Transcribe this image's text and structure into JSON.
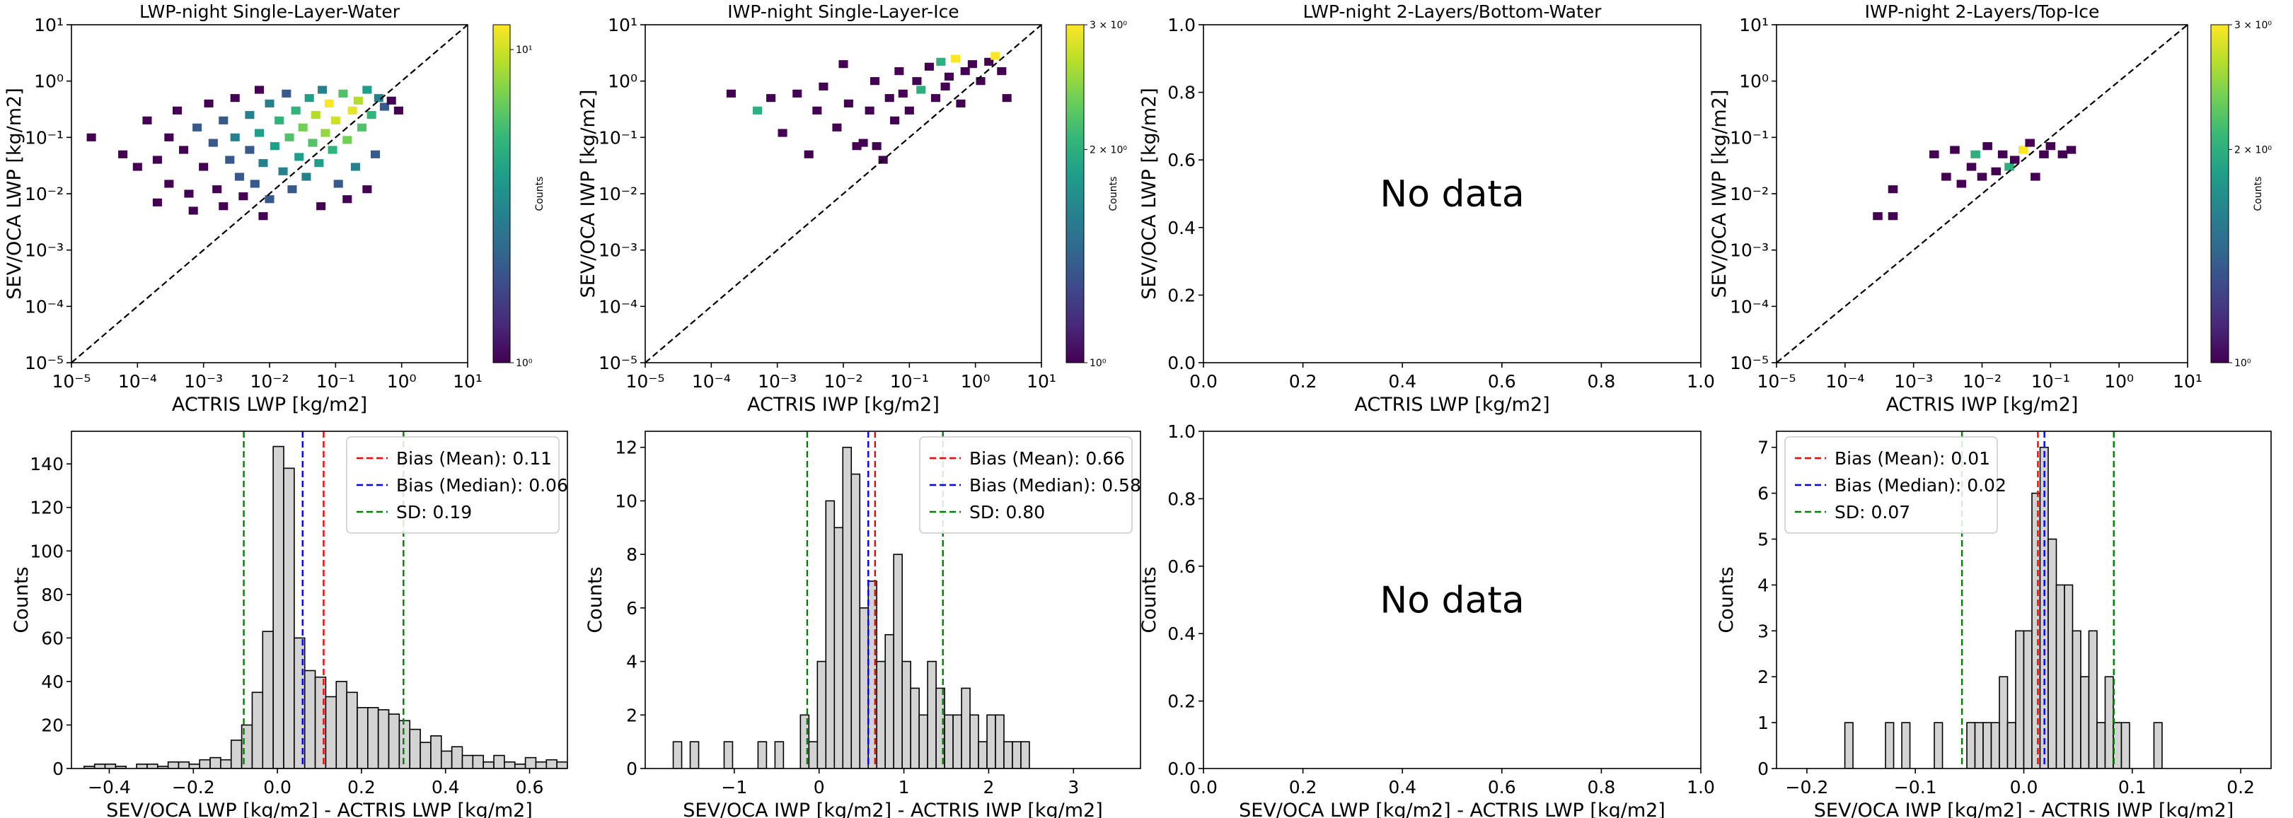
{
  "chart_data": [
    {
      "type": "hist2d",
      "title": "LWP-night Single-Layer-Water",
      "xlabel": "ACTRIS LWP [kg/m2]",
      "ylabel": "SEV/OCA LWP [kg/m2]",
      "xscale": "log",
      "yscale": "log",
      "xlim": [
        1e-05,
        10
      ],
      "ylim": [
        1e-05,
        10
      ],
      "xticks": [
        {
          "value": 1e-05,
          "label": "10⁻⁵"
        },
        {
          "value": 0.0001,
          "label": "10⁻⁴"
        },
        {
          "value": 0.001,
          "label": "10⁻³"
        },
        {
          "value": 0.01,
          "label": "10⁻²"
        },
        {
          "value": 0.1,
          "label": "10⁻¹"
        },
        {
          "value": 1,
          "label": "10⁰"
        },
        {
          "value": 10,
          "label": "10¹"
        }
      ],
      "yticks": [
        {
          "value": 1e-05,
          "label": "10⁻⁵"
        },
        {
          "value": 0.0001,
          "label": "10⁻⁴"
        },
        {
          "value": 0.001,
          "label": "10⁻³"
        },
        {
          "value": 0.01,
          "label": "10⁻²"
        },
        {
          "value": 0.1,
          "label": "10⁻¹"
        },
        {
          "value": 1,
          "label": "10⁰"
        },
        {
          "value": 10,
          "label": "10¹"
        }
      ],
      "identity_line": true,
      "colormap": "viridis",
      "clabel": "Counts",
      "clim": [
        1,
        12
      ],
      "cticks": [
        {
          "value": 1,
          "label": "10⁰"
        },
        {
          "value": 10,
          "label": "10¹"
        }
      ],
      "x": [
        2e-05,
        6e-05,
        0.0001,
        0.00014,
        0.0002,
        0.0002,
        0.0003,
        0.0003,
        0.0004,
        0.0005,
        0.0006,
        0.0007,
        0.0008,
        0.001,
        0.0012,
        0.0014,
        0.0016,
        0.002,
        0.002,
        0.0025,
        0.003,
        0.003,
        0.0035,
        0.004,
        0.005,
        0.005,
        0.006,
        0.007,
        0.007,
        0.008,
        0.01,
        0.01,
        0.012,
        0.014,
        0.016,
        0.018,
        0.02,
        0.022,
        0.025,
        0.028,
        0.032,
        0.036,
        0.04,
        0.045,
        0.05,
        0.056,
        0.063,
        0.07,
        0.08,
        0.09,
        0.1,
        0.11,
        0.13,
        0.15,
        0.18,
        0.2,
        0.22,
        0.25,
        0.3,
        0.35,
        0.4,
        0.45,
        0.55,
        0.7,
        0.9,
        0.3,
        0.06,
        0.008,
        0.15
      ],
      "y": [
        0.1,
        0.05,
        0.03,
        0.2,
        0.007,
        0.04,
        0.1,
        0.015,
        0.3,
        0.06,
        0.01,
        0.005,
        0.15,
        0.03,
        0.4,
        0.08,
        0.012,
        0.2,
        0.006,
        0.04,
        0.5,
        0.1,
        0.02,
        0.009,
        0.25,
        0.06,
        0.015,
        0.7,
        0.12,
        0.035,
        0.4,
        0.008,
        0.07,
        0.2,
        0.025,
        0.6,
        0.1,
        0.012,
        0.3,
        0.045,
        0.15,
        0.02,
        0.5,
        0.08,
        0.25,
        0.035,
        0.7,
        0.12,
        0.4,
        0.06,
        0.2,
        0.015,
        0.6,
        0.09,
        0.3,
        0.03,
        0.45,
        0.15,
        0.7,
        0.25,
        0.05,
        0.5,
        0.35,
        0.45,
        0.3,
        0.012,
        0.006,
        0.004,
        0.008
      ],
      "values": [
        1,
        1,
        1,
        1,
        1,
        1,
        1,
        1,
        1,
        1,
        1,
        1,
        2,
        1,
        1,
        2,
        1,
        2,
        1,
        2,
        1,
        3,
        2,
        1,
        3,
        2,
        2,
        1,
        4,
        3,
        3,
        2,
        4,
        5,
        3,
        2,
        6,
        2,
        5,
        4,
        7,
        3,
        4,
        6,
        9,
        4,
        3,
        8,
        12,
        5,
        10,
        2,
        6,
        7,
        11,
        3,
        9,
        6,
        4,
        5,
        2,
        3,
        2,
        1,
        1,
        1,
        1,
        1,
        1
      ]
    },
    {
      "type": "hist2d",
      "title": "IWP-night Single-Layer-Ice",
      "xlabel": "ACTRIS IWP [kg/m2]",
      "ylabel": "SEV/OCA IWP [kg/m2]",
      "xscale": "log",
      "yscale": "log",
      "xlim": [
        1e-05,
        10
      ],
      "ylim": [
        1e-05,
        10
      ],
      "xticks": [
        {
          "value": 1e-05,
          "label": "10⁻⁵"
        },
        {
          "value": 0.0001,
          "label": "10⁻⁴"
        },
        {
          "value": 0.001,
          "label": "10⁻³"
        },
        {
          "value": 0.01,
          "label": "10⁻²"
        },
        {
          "value": 0.1,
          "label": "10⁻¹"
        },
        {
          "value": 1,
          "label": "10⁰"
        },
        {
          "value": 10,
          "label": "10¹"
        }
      ],
      "yticks": [
        {
          "value": 1e-05,
          "label": "10⁻⁵"
        },
        {
          "value": 0.0001,
          "label": "10⁻⁴"
        },
        {
          "value": 0.001,
          "label": "10⁻³"
        },
        {
          "value": 0.01,
          "label": "10⁻²"
        },
        {
          "value": 0.1,
          "label": "10⁻¹"
        },
        {
          "value": 1,
          "label": "10⁰"
        },
        {
          "value": 10,
          "label": "10¹"
        }
      ],
      "identity_line": true,
      "colormap": "viridis",
      "clabel": "Counts",
      "clim": [
        1,
        3
      ],
      "cticks": [
        {
          "value": 1,
          "label": "10⁰"
        },
        {
          "value": 2,
          "label": "2 × 10⁰"
        },
        {
          "value": 3,
          "label": "3 × 10⁰"
        }
      ],
      "x": [
        0.0002,
        0.0005,
        0.0008,
        0.0012,
        0.002,
        0.003,
        0.004,
        0.005,
        0.008,
        0.01,
        0.012,
        0.016,
        0.02,
        0.025,
        0.03,
        0.032,
        0.04,
        0.05,
        0.06,
        0.07,
        0.08,
        0.1,
        0.13,
        0.15,
        0.2,
        0.25,
        0.3,
        0.35,
        0.4,
        0.5,
        0.6,
        0.7,
        0.9,
        1.2,
        1.6,
        2,
        2.5,
        3
      ],
      "y": [
        0.6,
        0.3,
        0.5,
        0.12,
        0.6,
        0.05,
        0.3,
        0.8,
        0.15,
        2,
        0.4,
        0.07,
        0.08,
        0.3,
        1,
        0.07,
        0.04,
        0.5,
        0.2,
        1.5,
        0.6,
        0.3,
        1,
        0.7,
        1.8,
        0.5,
        2.2,
        0.8,
        1.2,
        2.5,
        0.4,
        1.5,
        2,
        1,
        2.2,
        2.8,
        1.5,
        0.5
      ],
      "values": [
        1,
        2,
        1,
        1,
        1,
        1,
        1,
        1,
        1,
        1,
        1,
        1,
        1,
        1,
        1,
        1,
        1,
        1,
        1,
        1,
        1,
        1,
        1,
        2,
        1,
        1,
        2,
        1,
        1,
        3,
        1,
        1,
        1,
        1,
        1,
        3,
        1,
        1
      ]
    },
    {
      "type": "empty",
      "title": "LWP-night 2-Layers/Bottom-Water",
      "xlabel": "ACTRIS LWP [kg/m2]",
      "ylabel": "SEV/OCA LWP [kg/m2]",
      "annotation": "No data",
      "xlim": [
        0,
        1
      ],
      "ylim": [
        0,
        1
      ],
      "xticks": [
        {
          "value": 0,
          "label": "0.0"
        },
        0.2,
        0.4,
        0.6,
        0.8,
        {
          "value": 1,
          "label": "1.0"
        }
      ],
      "yticks": [
        {
          "value": 0,
          "label": "0.0"
        },
        0.2,
        0.4,
        0.6,
        0.8,
        {
          "value": 1,
          "label": "1.0"
        }
      ]
    },
    {
      "type": "hist2d",
      "title": "IWP-night 2-Layers/Top-Ice",
      "xlabel": "ACTRIS IWP [kg/m2]",
      "ylabel": "SEV/OCA IWP [kg/m2]",
      "xscale": "log",
      "yscale": "log",
      "xlim": [
        1e-05,
        10
      ],
      "ylim": [
        1e-05,
        10
      ],
      "xticks": [
        {
          "value": 1e-05,
          "label": "10⁻⁵"
        },
        {
          "value": 0.0001,
          "label": "10⁻⁴"
        },
        {
          "value": 0.001,
          "label": "10⁻³"
        },
        {
          "value": 0.01,
          "label": "10⁻²"
        },
        {
          "value": 0.1,
          "label": "10⁻¹"
        },
        {
          "value": 1,
          "label": "10⁰"
        },
        {
          "value": 10,
          "label": "10¹"
        }
      ],
      "yticks": [
        {
          "value": 1e-05,
          "label": "10⁻⁵"
        },
        {
          "value": 0.0001,
          "label": "10⁻⁴"
        },
        {
          "value": 0.001,
          "label": "10⁻³"
        },
        {
          "value": 0.01,
          "label": "10⁻²"
        },
        {
          "value": 0.1,
          "label": "10⁻¹"
        },
        {
          "value": 1,
          "label": "10⁰"
        },
        {
          "value": 10,
          "label": "10¹"
        }
      ],
      "identity_line": true,
      "colormap": "viridis",
      "clabel": "Counts",
      "clim": [
        1,
        3
      ],
      "cticks": [
        {
          "value": 1,
          "label": "10⁰"
        },
        {
          "value": 2,
          "label": "2 × 10⁰"
        },
        {
          "value": 3,
          "label": "3 × 10⁰"
        }
      ],
      "x": [
        0.0003,
        0.0005,
        0.0005,
        0.002,
        0.003,
        0.004,
        0.005,
        0.007,
        0.008,
        0.01,
        0.012,
        0.016,
        0.02,
        0.025,
        0.03,
        0.04,
        0.05,
        0.06,
        0.08,
        0.1,
        0.15,
        0.2
      ],
      "y": [
        0.004,
        0.004,
        0.012,
        0.05,
        0.02,
        0.06,
        0.015,
        0.03,
        0.05,
        0.02,
        0.07,
        0.025,
        0.05,
        0.03,
        0.04,
        0.06,
        0.08,
        0.02,
        0.05,
        0.07,
        0.05,
        0.06
      ],
      "values": [
        1,
        1,
        1,
        1,
        1,
        1,
        1,
        1,
        2,
        1,
        1,
        1,
        1,
        2,
        1,
        3,
        1,
        1,
        1,
        1,
        1,
        1
      ]
    },
    {
      "type": "histogram",
      "xlabel": "SEV/OCA LWP [kg/m2] - ACTRIS LWP [kg/m2]",
      "ylabel": "Counts",
      "color": "#d3d3d3",
      "xlim": [
        -0.49,
        0.69
      ],
      "ylim": [
        0,
        155
      ],
      "xticks": [
        {
          "value": -0.4,
          "label": "−0.4"
        },
        {
          "value": -0.2,
          "label": "−0.2"
        },
        {
          "value": 0,
          "label": "0.0"
        },
        0.2,
        0.4,
        0.6
      ],
      "yticks": [
        0,
        20,
        40,
        60,
        80,
        100,
        120,
        140
      ],
      "bins": [
        -0.46,
        -0.435,
        -0.41,
        -0.385,
        -0.36,
        -0.335,
        -0.31,
        -0.285,
        -0.26,
        -0.235,
        -0.21,
        -0.185,
        -0.16,
        -0.135,
        -0.11,
        -0.085,
        -0.06,
        -0.035,
        -0.01,
        0.015,
        0.04,
        0.065,
        0.09,
        0.115,
        0.14,
        0.165,
        0.19,
        0.215,
        0.24,
        0.265,
        0.29,
        0.315,
        0.34,
        0.365,
        0.39,
        0.415,
        0.44,
        0.465,
        0.49,
        0.515,
        0.54,
        0.565,
        0.59,
        0.615,
        0.64,
        0.665,
        0.69
      ],
      "values": [
        1,
        2,
        2,
        1,
        0,
        2,
        2,
        1,
        3,
        3,
        2,
        4,
        5,
        4,
        13,
        20,
        35,
        63,
        148,
        138,
        60,
        45,
        42,
        33,
        40,
        35,
        28,
        28,
        27,
        25,
        22,
        18,
        12,
        15,
        8,
        10,
        6,
        6,
        3,
        6,
        3,
        2,
        5,
        3,
        4,
        3
      ],
      "legend": "upper right",
      "series": [
        {
          "name": "Bias (Mean): 0.11",
          "color": "#ff0000",
          "values": [
            0.11
          ]
        },
        {
          "name": "Bias (Median): 0.06",
          "color": "#0000ff",
          "values": [
            0.06
          ]
        },
        {
          "name": "SD: 0.19",
          "color": "#008000",
          "values": [
            -0.08,
            0.3
          ]
        }
      ]
    },
    {
      "type": "histogram",
      "xlabel": "SEV/OCA IWP [kg/m2] - ACTRIS IWP [kg/m2]",
      "ylabel": "Counts",
      "color": "#d3d3d3",
      "xlim": [
        -2.05,
        3.79
      ],
      "ylim": [
        0,
        12.6
      ],
      "xticks": [
        {
          "value": -1,
          "label": "−1"
        },
        0,
        1,
        2,
        3
      ],
      "yticks": [
        0,
        2,
        4,
        6,
        8,
        10,
        12
      ],
      "bins": [
        -1.72,
        -1.62,
        -1.52,
        -1.42,
        -1.32,
        -1.22,
        -1.12,
        -1.02,
        -0.92,
        -0.82,
        -0.72,
        -0.62,
        -0.52,
        -0.42,
        -0.32,
        -0.22,
        -0.12,
        -0.02,
        0.08,
        0.18,
        0.28,
        0.38,
        0.48,
        0.58,
        0.68,
        0.78,
        0.88,
        0.98,
        1.08,
        1.18,
        1.28,
        1.38,
        1.48,
        1.58,
        1.68,
        1.78,
        1.88,
        1.98,
        2.08,
        2.18,
        2.28,
        2.38,
        2.48
      ],
      "values": [
        1,
        0,
        1,
        0,
        0,
        0,
        1,
        0,
        0,
        0,
        1,
        0,
        1,
        0,
        0,
        2,
        1,
        4,
        10,
        9,
        12,
        11,
        6,
        7,
        4,
        5,
        8,
        4,
        3,
        2,
        4,
        3,
        2,
        2,
        3,
        2,
        1,
        2,
        2,
        1,
        1,
        1
      ],
      "legend": "upper right",
      "series": [
        {
          "name": "Bias (Mean): 0.66",
          "color": "#ff0000",
          "values": [
            0.66
          ]
        },
        {
          "name": "Bias (Median): 0.58",
          "color": "#0000ff",
          "values": [
            0.58
          ]
        },
        {
          "name": "SD: 0.80",
          "color": "#008000",
          "values": [
            -0.14,
            1.46
          ]
        }
      ]
    },
    {
      "type": "empty",
      "xlabel": "SEV/OCA LWP [kg/m2] - ACTRIS LWP [kg/m2]",
      "ylabel": "Counts",
      "annotation": "No data",
      "xlim": [
        0,
        1
      ],
      "ylim": [
        0,
        1
      ],
      "xticks": [
        {
          "value": 0,
          "label": "0.0"
        },
        0.2,
        0.4,
        0.6,
        0.8,
        {
          "value": 1,
          "label": "1.0"
        }
      ],
      "yticks": [
        {
          "value": 0,
          "label": "0.0"
        },
        0.2,
        0.4,
        0.6,
        0.8,
        {
          "value": 1,
          "label": "1.0"
        }
      ]
    },
    {
      "type": "histogram",
      "xlabel": "SEV/OCA IWP [kg/m2] - ACTRIS IWP [kg/m2]",
      "ylabel": "Counts",
      "color": "#d3d3d3",
      "xlim": [
        -0.228,
        0.228
      ],
      "ylim": [
        0,
        7.35
      ],
      "xticks": [
        {
          "value": -0.2,
          "label": "−0.2"
        },
        {
          "value": -0.1,
          "label": "−0.1"
        },
        {
          "value": 0,
          "label": "0.0"
        },
        0.1,
        0.2
      ],
      "yticks": [
        0,
        1,
        2,
        3,
        4,
        5,
        6,
        7
      ],
      "bins": [
        -0.165,
        -0.1575,
        -0.15,
        -0.1425,
        -0.135,
        -0.1275,
        -0.12,
        -0.1125,
        -0.105,
        -0.0975,
        -0.09,
        -0.0825,
        -0.075,
        -0.0675,
        -0.06,
        -0.0525,
        -0.045,
        -0.0375,
        -0.03,
        -0.0225,
        -0.015,
        -0.0075,
        0,
        0.0075,
        0.015,
        0.0225,
        0.03,
        0.0375,
        0.045,
        0.0525,
        0.06,
        0.0675,
        0.075,
        0.0825,
        0.09,
        0.0975,
        0.105,
        0.1125,
        0.12,
        0.1275
      ],
      "values": [
        1,
        0,
        0,
        0,
        0,
        1,
        0,
        1,
        0,
        0,
        0,
        1,
        0,
        0,
        0,
        1,
        1,
        1,
        1,
        2,
        1,
        3,
        3,
        6,
        7,
        5,
        4,
        4,
        3,
        2,
        3,
        1,
        2,
        1,
        1,
        0,
        0,
        0,
        1
      ],
      "legend": "upper left",
      "series": [
        {
          "name": "Bias (Mean): 0.01",
          "color": "#ff0000",
          "values": [
            0.013
          ]
        },
        {
          "name": "Bias (Median): 0.02",
          "color": "#0000ff",
          "values": [
            0.019
          ]
        },
        {
          "name": "SD: 0.07",
          "color": "#008000",
          "values": [
            -0.057,
            0.083
          ]
        }
      ]
    }
  ]
}
